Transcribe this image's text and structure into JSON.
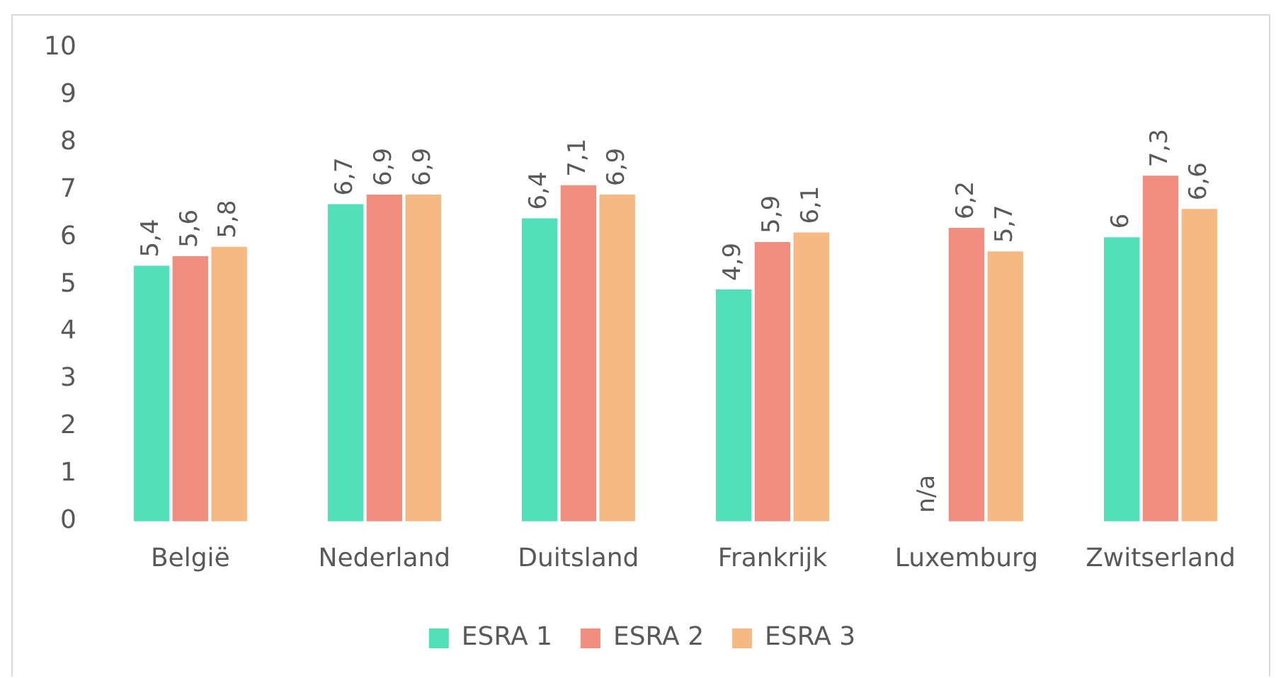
{
  "chart_data": {
    "type": "bar",
    "categories": [
      "België",
      "Nederland",
      "Duitsland",
      "Frankrijk",
      "Luxemburg",
      "Zwitserland"
    ],
    "series": [
      {
        "name": "ESRA 1",
        "color": "#52e0b8",
        "values": [
          5.4,
          6.7,
          6.4,
          4.9,
          null,
          6
        ],
        "value_labels": [
          "5,4",
          "6,7",
          "6,4",
          "4,9",
          "n/a",
          "6"
        ]
      },
      {
        "name": "ESRA 2",
        "color": "#f08e80",
        "values": [
          5.6,
          6.9,
          7.1,
          5.9,
          6.2,
          7.3
        ],
        "value_labels": [
          "5,6",
          "6,9",
          "7,1",
          "5,9",
          "6,2",
          "7,3"
        ]
      },
      {
        "name": "ESRA 3",
        "color": "#f6b983",
        "values": [
          5.8,
          6.9,
          6.9,
          6.1,
          5.7,
          6.6
        ],
        "value_labels": [
          "5,8",
          "6,9",
          "6,9",
          "6,1",
          "5,7",
          "6,6"
        ]
      }
    ],
    "ylim": [
      0,
      10
    ],
    "yticks": [
      0,
      1,
      2,
      3,
      4,
      5,
      6,
      7,
      8,
      9,
      10
    ],
    "grid": false,
    "legend": "bottom"
  }
}
